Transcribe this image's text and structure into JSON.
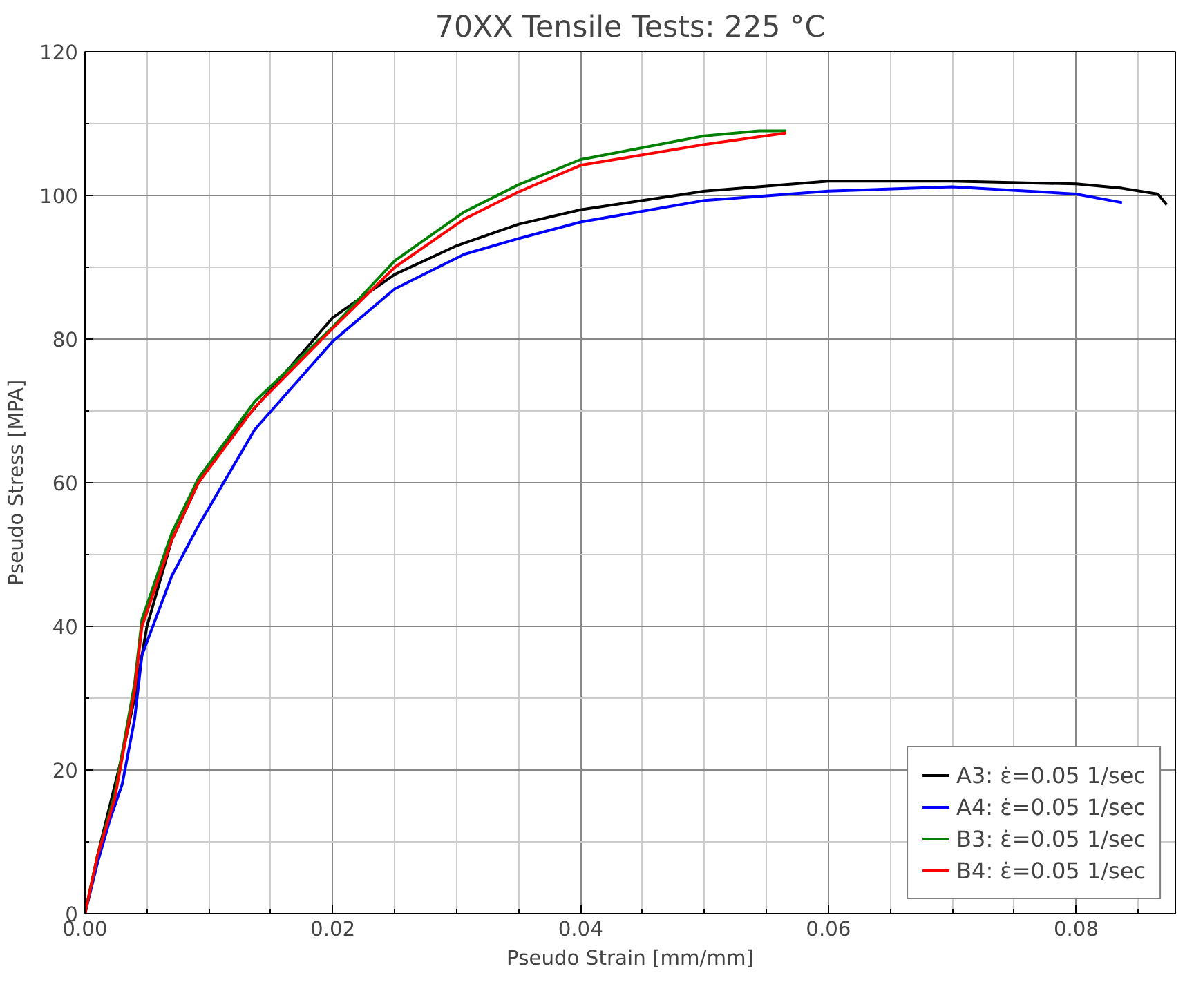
{
  "chart_data": {
    "type": "line",
    "title": "70XX Tensile Tests: 225 °C",
    "xlabel": "Pseudo Strain [mm/mm]",
    "ylabel": "Pseudo Stress [MPA]",
    "xlim": [
      0,
      0.088
    ],
    "ylim": [
      0,
      120
    ],
    "xticks": [
      {
        "value": 0,
        "label": "0.00"
      },
      {
        "value": 0.005,
        "label": null
      },
      {
        "value": 0.01,
        "label": null
      },
      {
        "value": 0.015,
        "label": null
      },
      {
        "value": 0.02,
        "label": "0.02"
      },
      {
        "value": 0.025,
        "label": null
      },
      {
        "value": 0.03,
        "label": null
      },
      {
        "value": 0.035,
        "label": null
      },
      {
        "value": 0.04,
        "label": "0.04"
      },
      {
        "value": 0.045,
        "label": null
      },
      {
        "value": 0.05,
        "label": null
      },
      {
        "value": 0.055,
        "label": null
      },
      {
        "value": 0.06,
        "label": "0.06"
      },
      {
        "value": 0.065,
        "label": null
      },
      {
        "value": 0.07,
        "label": null
      },
      {
        "value": 0.075,
        "label": null
      },
      {
        "value": 0.08,
        "label": "0.08"
      },
      {
        "value": 0.085,
        "label": null
      }
    ],
    "yticks": [
      0,
      {
        "value": 10,
        "label": null
      },
      20,
      {
        "value": 30,
        "label": null
      },
      40,
      {
        "value": 50,
        "label": null
      },
      60,
      {
        "value": 70,
        "label": null
      },
      80,
      {
        "value": 90,
        "label": null
      },
      100,
      {
        "value": 110,
        "label": null
      },
      120
    ],
    "grid": true,
    "legend": "bottom right",
    "line_style": "solid",
    "marker": "none",
    "series": [
      {
        "name": "A3: ε̇=0.05 1/sec",
        "color": "#000000",
        "x": [
          0,
          0.001,
          0.002,
          0.003,
          0.004,
          0.005,
          0.007,
          0.00915,
          0.012,
          0.015,
          0.02,
          0.025,
          0.03,
          0.035,
          0.04,
          0.05,
          0.06,
          0.07,
          0.08,
          0.0837,
          0.0866,
          0.0873
        ],
        "values": [
          0,
          8,
          15,
          22,
          30,
          40,
          52,
          60,
          67,
          73,
          83,
          89,
          93,
          96,
          98,
          100.6,
          102,
          102,
          101.6,
          101,
          100.2,
          98.7
        ]
      },
      {
        "name": "A4: ε̇=0.05 1/sec",
        "color": "#0000ff",
        "x": [
          0,
          0.001,
          0.002,
          0.003,
          0.004,
          0.0046,
          0.007,
          0.00915,
          0.0137,
          0.02,
          0.025,
          0.0306,
          0.035,
          0.04,
          0.05,
          0.06,
          0.07,
          0.08,
          0.0837
        ],
        "values": [
          0,
          7,
          13,
          18,
          27,
          36,
          47,
          54,
          67.4,
          79.7,
          87,
          91.8,
          94,
          96.3,
          99.3,
          100.6,
          101.2,
          100.2,
          99
        ]
      },
      {
        "name": "B3: ε̇=0.05 1/sec",
        "color": "#008000",
        "x": [
          0,
          0.001,
          0.0024,
          0.004,
          0.0046,
          0.007,
          0.00915,
          0.0137,
          0.02,
          0.025,
          0.0306,
          0.035,
          0.04,
          0.05,
          0.0544,
          0.0566
        ],
        "values": [
          0,
          8,
          16.6,
          32,
          41,
          53,
          60.6,
          71.3,
          81.7,
          90.9,
          97.7,
          101.5,
          105,
          108.3,
          109,
          109
        ]
      },
      {
        "name": "B4: ε̇=0.05 1/sec",
        "color": "#ff0000",
        "x": [
          0,
          0.001,
          0.0024,
          0.004,
          0.0046,
          0.007,
          0.00915,
          0.0137,
          0.02,
          0.025,
          0.0306,
          0.035,
          0.04,
          0.05,
          0.0566
        ],
        "values": [
          0,
          8,
          16,
          31,
          40,
          52,
          60,
          70.5,
          81.5,
          90,
          96.7,
          100.5,
          104.2,
          107.1,
          108.7
        ]
      }
    ]
  }
}
